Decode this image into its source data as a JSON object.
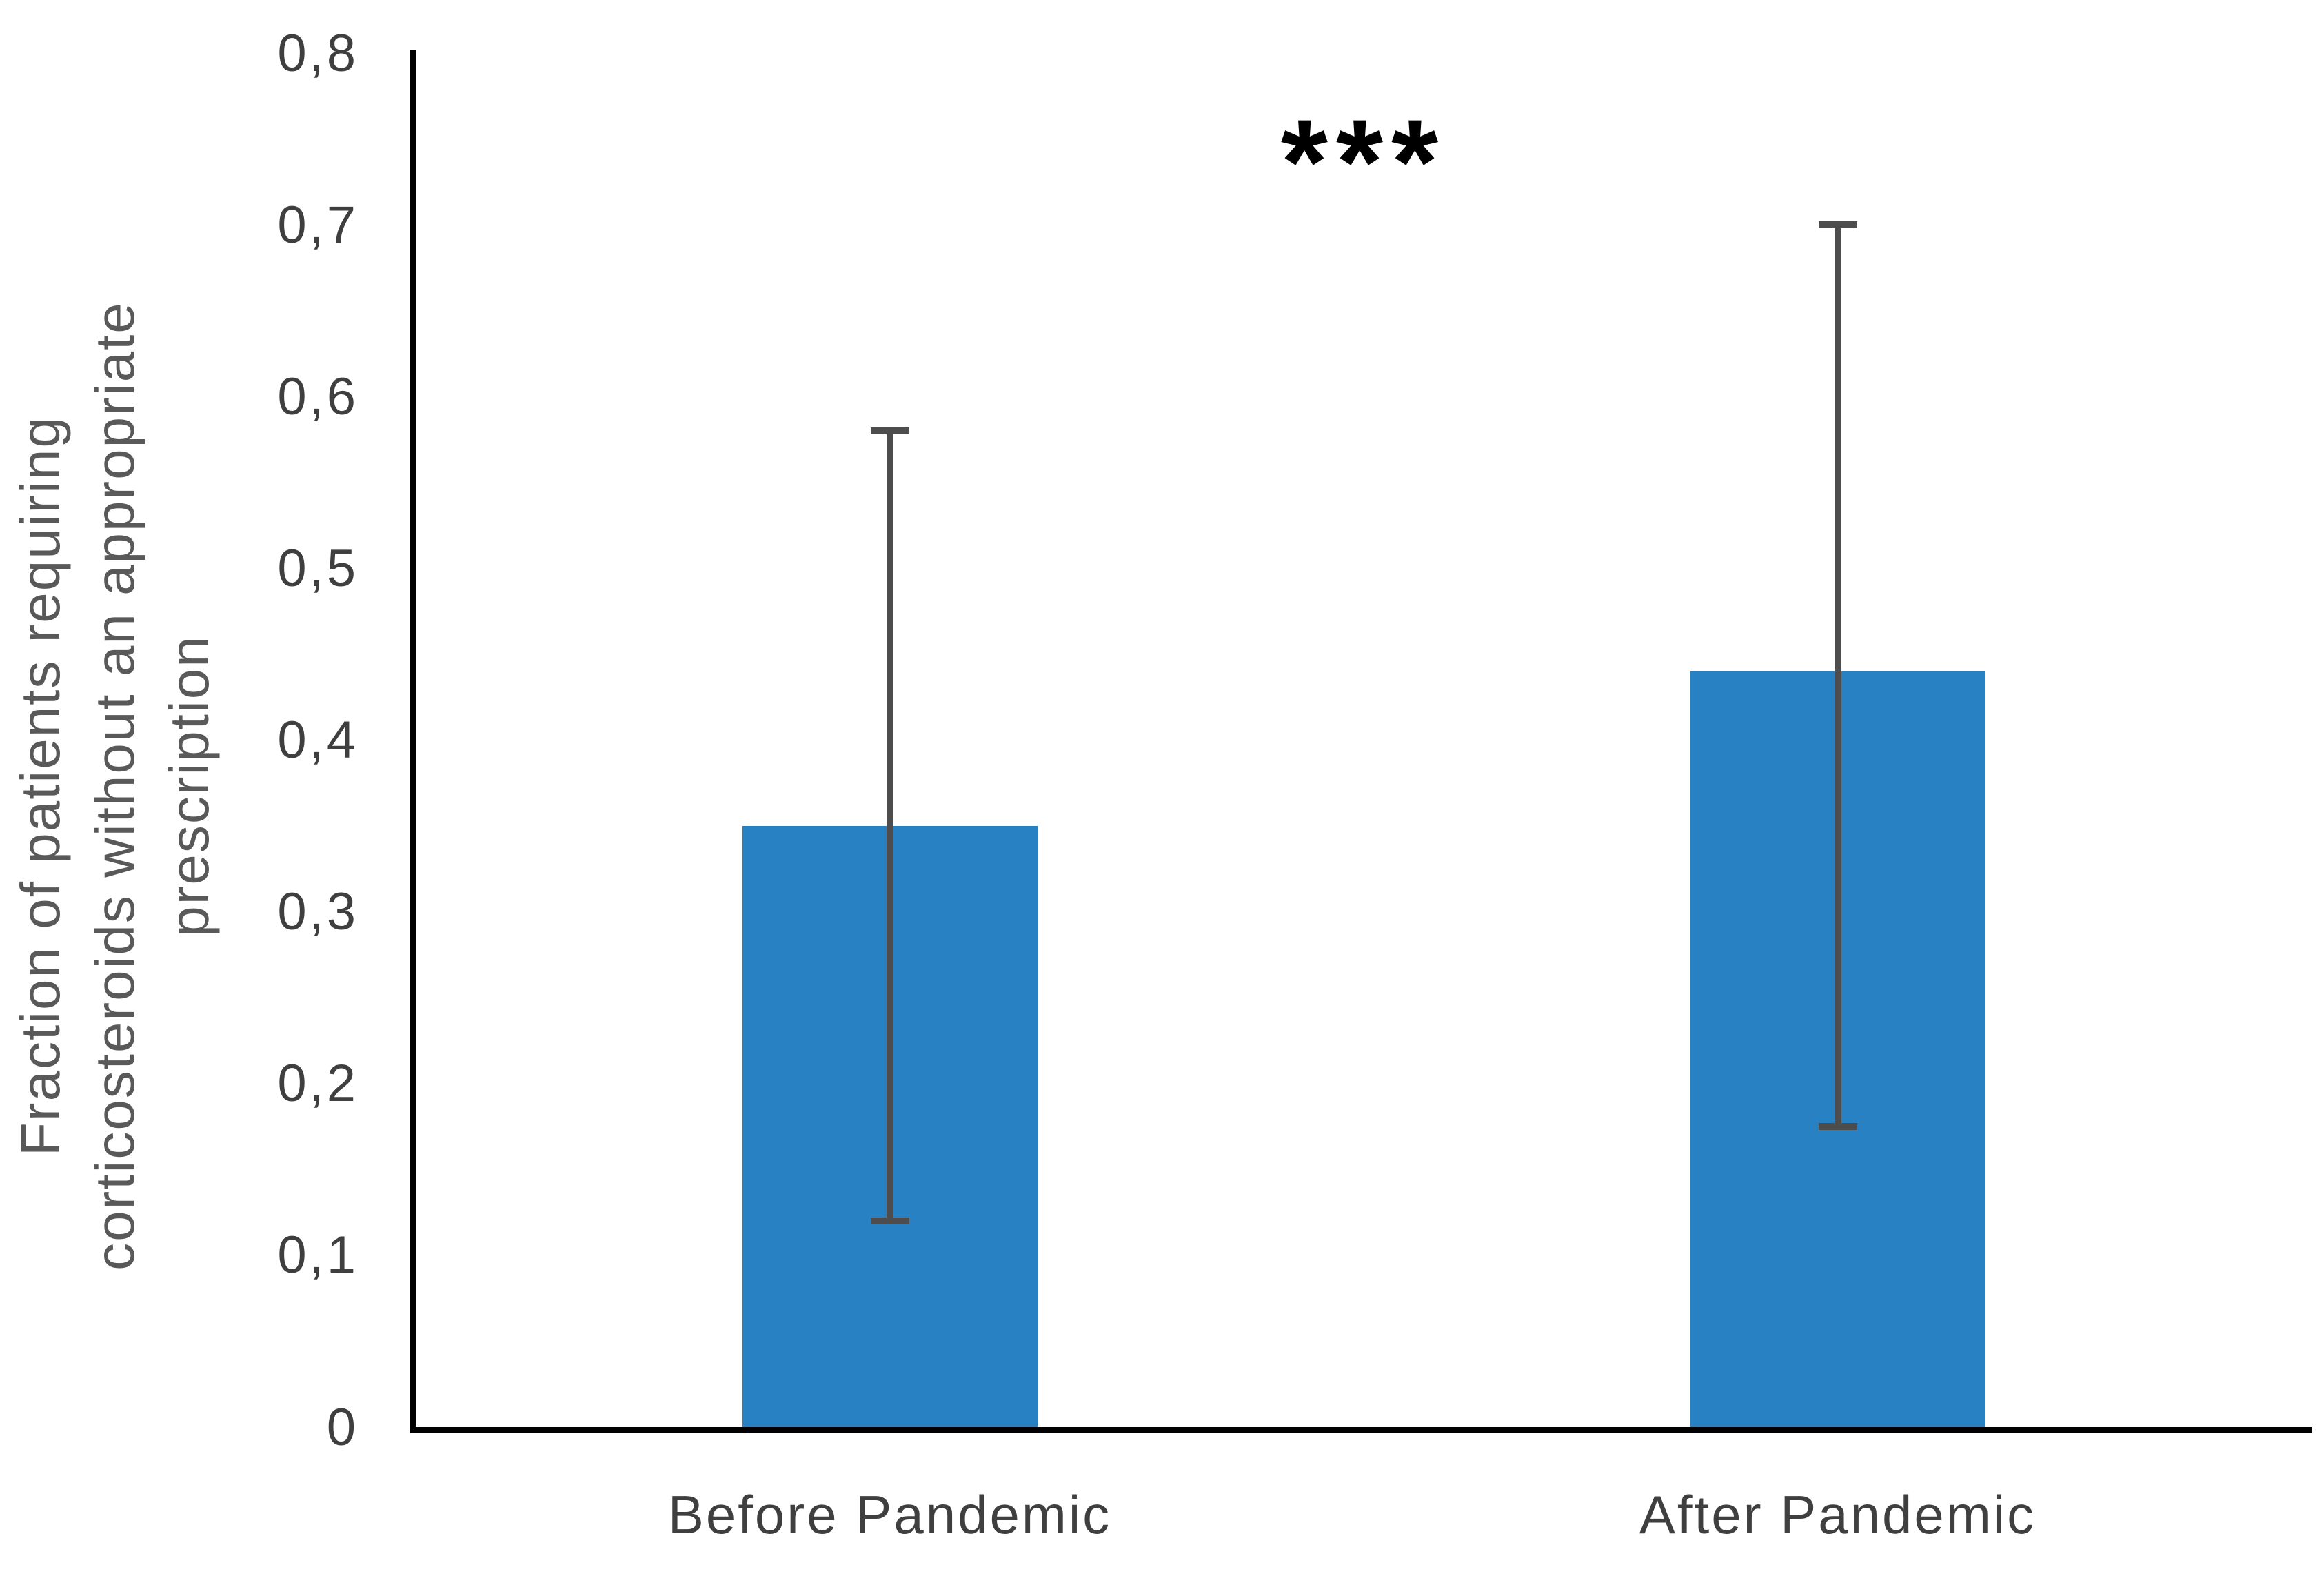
{
  "figure": {
    "background": "#FFFFFF",
    "title": ""
  },
  "chart_data": {
    "type": "bar",
    "categories": [
      "Before Pandemic",
      "After Pandemic"
    ],
    "values": [
      0.35,
      0.44
    ],
    "error_low": [
      0.12,
      0.175
    ],
    "error_high": [
      0.58,
      0.7
    ],
    "title": "",
    "xlabel": "",
    "ylabel": "Fraction of patients requiring corticosteroids without an appropriate prescription",
    "ylabel_lines": [
      "Fraction of patients requiring",
      "corticosteroids without an appropriate",
      "prescription"
    ],
    "ylim": [
      0,
      0.8
    ],
    "ytick_step": 0.1,
    "yticks": [
      {
        "value": 0.0,
        "label": "0"
      },
      {
        "value": 0.1,
        "label": "0,1"
      },
      {
        "value": 0.2,
        "label": "0,2"
      },
      {
        "value": 0.3,
        "label": "0,3"
      },
      {
        "value": 0.4,
        "label": "0,4"
      },
      {
        "value": 0.5,
        "label": "0,5"
      },
      {
        "value": 0.6,
        "label": "0,6"
      },
      {
        "value": 0.7,
        "label": "0,7"
      },
      {
        "value": 0.8,
        "label": "0,8"
      }
    ],
    "decimal_separator": ",",
    "grid": false,
    "legend": false,
    "annotation": {
      "text": "***",
      "location": "top center, between the two bars"
    },
    "colors": {
      "bar": "#2781C3",
      "error_bar": "#4D4D4D",
      "axis": "#000000",
      "tick_label": "#3F3F3F",
      "category_label": "#3F3F3F",
      "ylabel": "#595959",
      "annotation": "#000000"
    }
  }
}
